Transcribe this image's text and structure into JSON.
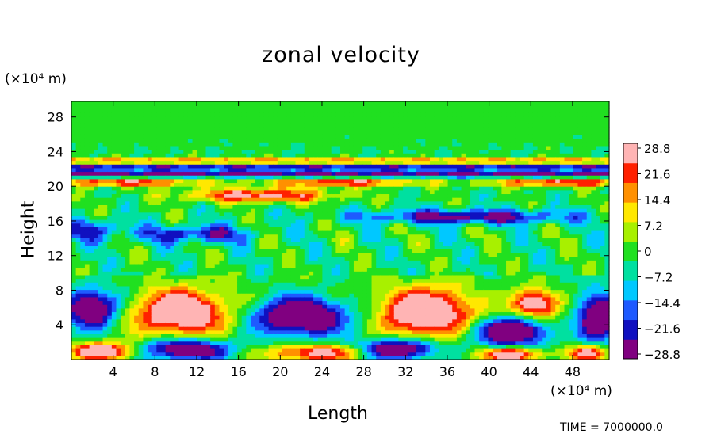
{
  "chart_data": {
    "type": "heatmap",
    "title": "zonal velocity",
    "xlabel": "Length",
    "ylabel": "Height",
    "x_unit": "(×10⁴ m)",
    "y_unit": "(×10⁴ m)",
    "xlim": [
      0,
      51.5
    ],
    "ylim": [
      0,
      29.8
    ],
    "x_ticks": [
      "4",
      "8",
      "12",
      "16",
      "20",
      "24",
      "28",
      "32",
      "36",
      "40",
      "44",
      "48"
    ],
    "y_ticks": [
      "4",
      "8",
      "12",
      "16",
      "20",
      "24",
      "28"
    ],
    "colorbar": {
      "range": [
        -28.8,
        28.8
      ],
      "tick_labels": [
        "28.8",
        "21.6",
        "14.4",
        "7.2",
        "0",
        "−7.2",
        "−14.4",
        "−21.6",
        "−28.8"
      ],
      "colors": [
        "#800080",
        "#1010c0",
        "#1e5aff",
        "#00c8ff",
        "#00e0a0",
        "#20e020",
        "#a8f000",
        "#ffe800",
        "#ff9000",
        "#ff2000",
        "#ffb4b4"
      ]
    },
    "footer": "TIME = 7000000.0"
  }
}
